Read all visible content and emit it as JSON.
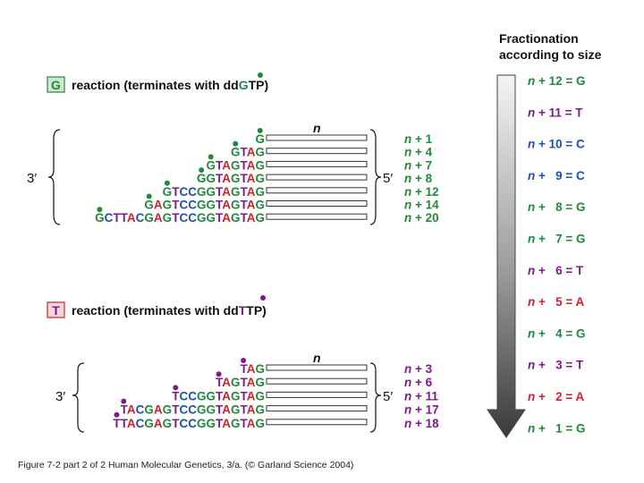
{
  "colors": {
    "G": "#1f8a3c",
    "T": "#7d1a8c",
    "C": "#1f4fb4",
    "A": "#d4202a"
  },
  "right_panel": {
    "title_line1": "Fractionation",
    "title_line2": "according to size",
    "rows": [
      {
        "n": "n",
        "label": " + 12 = G",
        "base": "G"
      },
      {
        "n": "n",
        "label": " + 11 = T",
        "base": "T"
      },
      {
        "n": "n",
        "label": " + 10 = C",
        "base": "C"
      },
      {
        "n": "n",
        "label": " +   9 = C",
        "base": "C"
      },
      {
        "n": "n",
        "label": " +   8 = G",
        "base": "G"
      },
      {
        "n": "n",
        "label": " +   7 = G",
        "base": "G"
      },
      {
        "n": "n",
        "label": " +   6 = T",
        "base": "T"
      },
      {
        "n": "n",
        "label": " +   5 = A",
        "base": "A"
      },
      {
        "n": "n",
        "label": " +   4 = G",
        "base": "G"
      },
      {
        "n": "n",
        "label": " +   3 = T",
        "base": "T"
      },
      {
        "n": "n",
        "label": " +   2 = A",
        "base": "A"
      },
      {
        "n": "n",
        "label": " +   1 = G",
        "base": "G"
      }
    ]
  },
  "g_reaction": {
    "box_letter": "G",
    "title_prefix": "reaction (terminates with dd",
    "title_base": "G",
    "title_suffix": "TP)",
    "n_label": "n",
    "left_end": "3′",
    "right_end": "5′",
    "base": "G",
    "fragments": [
      {
        "seq": "G",
        "size": "n + 1"
      },
      {
        "seq": "GTAG",
        "size": "n + 4"
      },
      {
        "seq": "GTAGTAG",
        "size": "n + 7"
      },
      {
        "seq": "GGTAGTAG",
        "size": "n + 8"
      },
      {
        "seq": "GTCCGGTAGTAG",
        "size": "n + 12"
      },
      {
        "seq": "GAGTCCGGTAGTAG",
        "size": "n + 14"
      },
      {
        "seq": "GCTTACGAGTCCGGTAGTAG",
        "size": "n + 20"
      }
    ]
  },
  "t_reaction": {
    "box_letter": "T",
    "title_prefix": "reaction (terminates with dd",
    "title_base": "T",
    "title_suffix": "TP)",
    "n_label": "n",
    "left_end": "3′",
    "right_end": "5′",
    "base": "T",
    "fragments": [
      {
        "seq": "TAG",
        "size": "n + 3"
      },
      {
        "seq": "TAGTAG",
        "size": "n + 6"
      },
      {
        "seq": "TCCGGTAGTAG",
        "size": "n + 11"
      },
      {
        "seq": "TACGAGTCCGGTAGTAG",
        "size": "n + 17"
      },
      {
        "seq": "TTACGAGTCCGGTAGTAG",
        "size": "n + 18"
      }
    ]
  },
  "caption": "Figure 7-2  part 2 of 2  Human Molecular Genetics, 3/a.  (© Garland Science 2004)"
}
